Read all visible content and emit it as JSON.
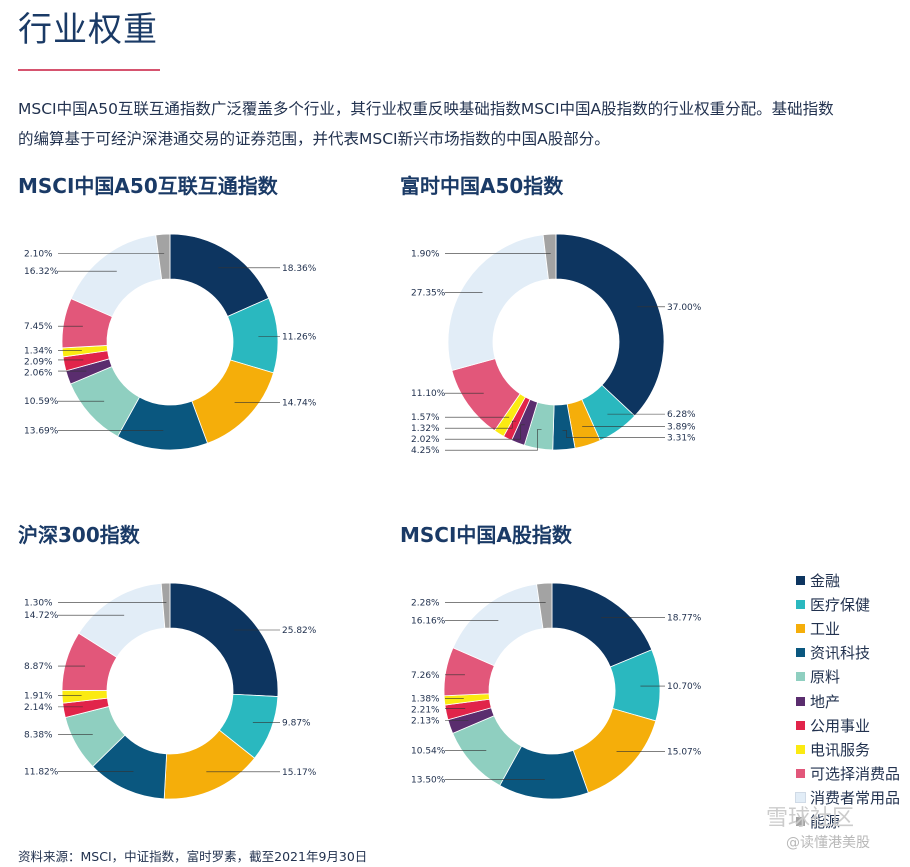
{
  "page": {
    "title": "行业权重",
    "intro": "MSCI中国A50互联互通指数广泛覆盖多个行业，其行业权重反映基础指数MSCI中国A股指数的行业权重分配。基础指数的编算基于可经沪深港通交易的证券范围，并代表MSCI新兴市场指数的中国A股部分。",
    "source": "资料来源：MSCI，中证指数，富时罗素，截至2021年9月30日",
    "watermark": "@读懂港美股",
    "watermark_mark": "雪球社区"
  },
  "legend": [
    {
      "label": "金融",
      "color": "#0d3560"
    },
    {
      "label": "医疗保健",
      "color": "#2ab8bf"
    },
    {
      "label": "工业",
      "color": "#f5ae0a"
    },
    {
      "label": "资讯科技",
      "color": "#0a577f"
    },
    {
      "label": "原料",
      "color": "#8fcfc0"
    },
    {
      "label": "地产",
      "color": "#5a2d6e"
    },
    {
      "label": "公用事业",
      "color": "#e1244a"
    },
    {
      "label": "电讯服务",
      "color": "#fbea12"
    },
    {
      "label": "可选择消费品",
      "color": "#e2577a"
    },
    {
      "label": "消费者常用品",
      "color": "#e2edf7"
    },
    {
      "label": "能源",
      "color": "#a3a3a3"
    }
  ],
  "chart_data": [
    {
      "type": "pie",
      "title": "MSCI中国A50互联互通指数",
      "categories": [
        "金融",
        "医疗保健",
        "工业",
        "资讯科技",
        "原料",
        "地产",
        "公用事业",
        "电讯服务",
        "可选择消费品",
        "消费者常用品",
        "能源"
      ],
      "values": [
        18.36,
        11.26,
        14.74,
        13.69,
        10.59,
        2.06,
        2.09,
        1.34,
        7.45,
        16.32,
        2.1
      ],
      "labels": [
        "18.36%",
        "11.26%",
        "14.74%",
        "13.69%",
        "10.59%",
        "2.06%",
        "2.09%",
        "1.34%",
        "7.45%",
        "16.32%",
        "2.10%"
      ]
    },
    {
      "type": "pie",
      "title": "富时中国A50指数",
      "categories": [
        "金融",
        "医疗保健",
        "工业",
        "资讯科技",
        "原料",
        "地产",
        "公用事业",
        "电讯服务",
        "可选择消费品",
        "消费者常用品",
        "能源"
      ],
      "values": [
        37.0,
        6.28,
        3.89,
        3.31,
        4.25,
        2.02,
        1.32,
        1.57,
        11.1,
        27.35,
        1.9
      ],
      "labels": [
        "37.00%",
        "6.28%",
        "3.89%",
        "3.31%",
        "4.25%",
        "2.02%",
        "1.32%",
        "1.57%",
        "11.10%",
        "27.35%",
        "1.90%"
      ]
    },
    {
      "type": "pie",
      "title": "沪深300指数",
      "categories": [
        "金融",
        "医疗保健",
        "工业",
        "资讯科技",
        "原料",
        "地产",
        "公用事业",
        "电讯服务",
        "可选择消费品",
        "消费者常用品",
        "能源"
      ],
      "values": [
        25.82,
        9.87,
        15.17,
        11.82,
        8.38,
        0,
        2.14,
        1.91,
        8.87,
        14.72,
        1.3
      ],
      "labels": [
        "25.82%",
        "9.87%",
        "15.17%",
        "11.82%",
        "8.38%",
        "",
        "2.14%",
        "1.91%",
        "8.87%",
        "14.72%",
        "1.30%"
      ]
    },
    {
      "type": "pie",
      "title": "MSCI中国A股指数",
      "categories": [
        "金融",
        "医疗保健",
        "工业",
        "资讯科技",
        "原料",
        "地产",
        "公用事业",
        "电讯服务",
        "可选择消费品",
        "消费者常用品",
        "能源"
      ],
      "values": [
        18.77,
        10.7,
        15.07,
        13.5,
        10.54,
        2.13,
        2.21,
        1.38,
        7.26,
        16.16,
        2.28
      ],
      "labels": [
        "18.77%",
        "10.70%",
        "15.07%",
        "13.50%",
        "10.54%",
        "2.13%",
        "2.21%",
        "1.38%",
        "7.26%",
        "16.16%",
        "2.28%"
      ]
    }
  ]
}
